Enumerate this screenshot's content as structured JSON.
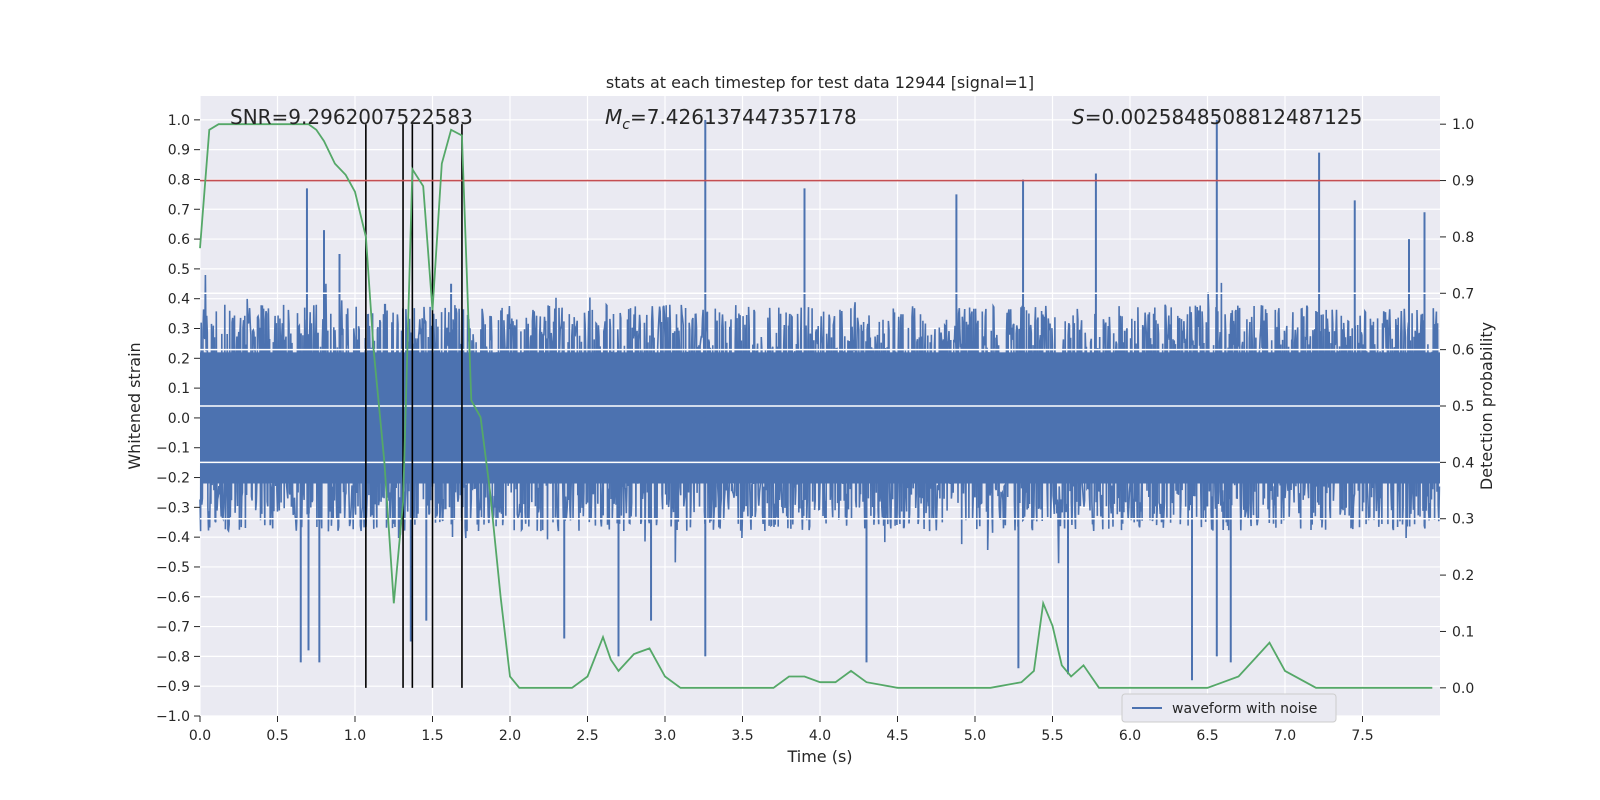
{
  "chart_data": {
    "type": "line",
    "title": "stats at each timestep for test data 12944 [signal=1]",
    "xlabel": "Time (s)",
    "ylabel": "Whitened strain",
    "y2label": "Detection probability",
    "xlim": [
      0.0,
      8.0
    ],
    "ylim": [
      -1.0,
      1.08
    ],
    "y2lim": [
      -0.05,
      1.05
    ],
    "xticks": [
      0.0,
      0.5,
      1.0,
      1.5,
      2.0,
      2.5,
      3.0,
      3.5,
      4.0,
      4.5,
      5.0,
      5.5,
      6.0,
      6.5,
      7.0,
      7.5
    ],
    "xtick_labels": [
      "0.0",
      "0.5",
      "1.0",
      "1.5",
      "2.0",
      "2.5",
      "3.0",
      "3.5",
      "4.0",
      "4.5",
      "5.0",
      "5.5",
      "6.0",
      "6.5",
      "7.0",
      "7.5"
    ],
    "yticks": [
      -1.0,
      -0.9,
      -0.8,
      -0.7,
      -0.6,
      -0.5,
      -0.4,
      -0.3,
      -0.2,
      -0.1,
      0.0,
      0.1,
      0.2,
      0.3,
      0.4,
      0.5,
      0.6,
      0.7,
      0.8,
      0.9,
      1.0
    ],
    "ytick_labels": [
      "−1.0",
      "−0.9",
      "−0.8",
      "−0.7",
      "−0.6",
      "−0.5",
      "−0.4",
      "−0.3",
      "−0.2",
      "−0.1",
      "0.0",
      "0.1",
      "0.2",
      "0.3",
      "0.4",
      "0.5",
      "0.6",
      "0.7",
      "0.8",
      "0.9",
      "1.0"
    ],
    "y2ticks": [
      0.0,
      0.1,
      0.2,
      0.3,
      0.4,
      0.5,
      0.6,
      0.7,
      0.8,
      0.9,
      1.0
    ],
    "y2tick_labels": [
      "0.0",
      "0.1",
      "0.2",
      "0.3",
      "0.4",
      "0.5",
      "0.6",
      "0.7",
      "0.8",
      "0.9",
      "1.0"
    ],
    "annotations": {
      "snr": "SNR=9.2962007522583",
      "mc_symbol": "M",
      "mc_sub": "c",
      "mc_value": "=7.426137447357178",
      "s_symbol": "S",
      "s_value": "=0.0025848508812487125"
    },
    "legend": {
      "label": "waveform with noise",
      "position": "lower-right"
    },
    "threshold": {
      "y2": 0.9,
      "color": "#c44e52"
    },
    "vertical_lines": [
      1.07,
      1.31,
      1.37,
      1.5,
      1.69
    ],
    "waveform": {
      "name": "waveform with noise",
      "color": "#4c72b0",
      "t_start": 0.0,
      "t_end": 8.0,
      "n_samples": 2048,
      "core_envelope": 0.38,
      "seed": 12944
    },
    "probability": {
      "color": "#55a868",
      "x": [
        0.0,
        0.06,
        0.12,
        0.2,
        0.3,
        0.4,
        0.5,
        0.6,
        0.7,
        0.75,
        0.8,
        0.87,
        0.94,
        1.0,
        1.07,
        1.12,
        1.19,
        1.25,
        1.31,
        1.37,
        1.44,
        1.5,
        1.56,
        1.62,
        1.69,
        1.75,
        1.81,
        1.87,
        1.94,
        2.0,
        2.06,
        2.2,
        2.4,
        2.5,
        2.6,
        2.65,
        2.7,
        2.8,
        2.9,
        3.0,
        3.1,
        3.3,
        3.5,
        3.7,
        3.8,
        3.9,
        4.0,
        4.1,
        4.2,
        4.3,
        4.5,
        4.7,
        4.9,
        5.1,
        5.3,
        5.38,
        5.44,
        5.5,
        5.56,
        5.62,
        5.7,
        5.8,
        5.9,
        6.1,
        6.3,
        6.5,
        6.6,
        6.7,
        6.8,
        6.9,
        7.0,
        7.2,
        7.4,
        7.6,
        7.95
      ],
      "y": [
        0.78,
        0.99,
        1.0,
        1.0,
        1.0,
        1.0,
        1.0,
        1.0,
        1.0,
        0.99,
        0.97,
        0.93,
        0.91,
        0.88,
        0.8,
        0.6,
        0.4,
        0.15,
        0.33,
        0.92,
        0.89,
        0.67,
        0.93,
        0.99,
        0.98,
        0.51,
        0.48,
        0.35,
        0.16,
        0.02,
        0.0,
        0.0,
        0.0,
        0.02,
        0.09,
        0.05,
        0.03,
        0.06,
        0.07,
        0.02,
        0.0,
        0.0,
        0.0,
        0.0,
        0.02,
        0.02,
        0.01,
        0.01,
        0.03,
        0.01,
        0.0,
        0.0,
        0.0,
        0.0,
        0.01,
        0.03,
        0.15,
        0.11,
        0.04,
        0.02,
        0.04,
        0.0,
        0.0,
        0.0,
        0.0,
        0.0,
        0.01,
        0.02,
        0.05,
        0.08,
        0.03,
        0.0,
        0.0,
        0.0,
        0.0
      ]
    },
    "spikes": [
      {
        "t": 0.65,
        "v": -0.82
      },
      {
        "t": 0.69,
        "v": 0.77
      },
      {
        "t": 0.7,
        "v": -0.78
      },
      {
        "t": 0.77,
        "v": -0.82
      },
      {
        "t": 0.8,
        "v": 0.63
      },
      {
        "t": 0.9,
        "v": 0.55
      },
      {
        "t": 1.36,
        "v": -0.75
      },
      {
        "t": 1.46,
        "v": -0.68
      },
      {
        "t": 1.62,
        "v": 0.45
      },
      {
        "t": 2.35,
        "v": -0.74
      },
      {
        "t": 2.7,
        "v": -0.8
      },
      {
        "t": 2.91,
        "v": -0.68
      },
      {
        "t": 3.26,
        "v": 1.0
      },
      {
        "t": 3.26,
        "v": -0.8
      },
      {
        "t": 3.9,
        "v": 0.77
      },
      {
        "t": 4.3,
        "v": -0.82
      },
      {
        "t": 4.88,
        "v": 0.75
      },
      {
        "t": 5.28,
        "v": -0.84
      },
      {
        "t": 5.31,
        "v": 0.8
      },
      {
        "t": 5.6,
        "v": -0.86
      },
      {
        "t": 5.78,
        "v": 0.82
      },
      {
        "t": 6.4,
        "v": -0.88
      },
      {
        "t": 6.56,
        "v": 1.0
      },
      {
        "t": 6.56,
        "v": -0.8
      },
      {
        "t": 6.65,
        "v": -0.82
      },
      {
        "t": 7.22,
        "v": 0.89
      },
      {
        "t": 7.45,
        "v": 0.73
      },
      {
        "t": 7.8,
        "v": 0.6
      },
      {
        "t": 7.9,
        "v": 0.69
      }
    ]
  }
}
